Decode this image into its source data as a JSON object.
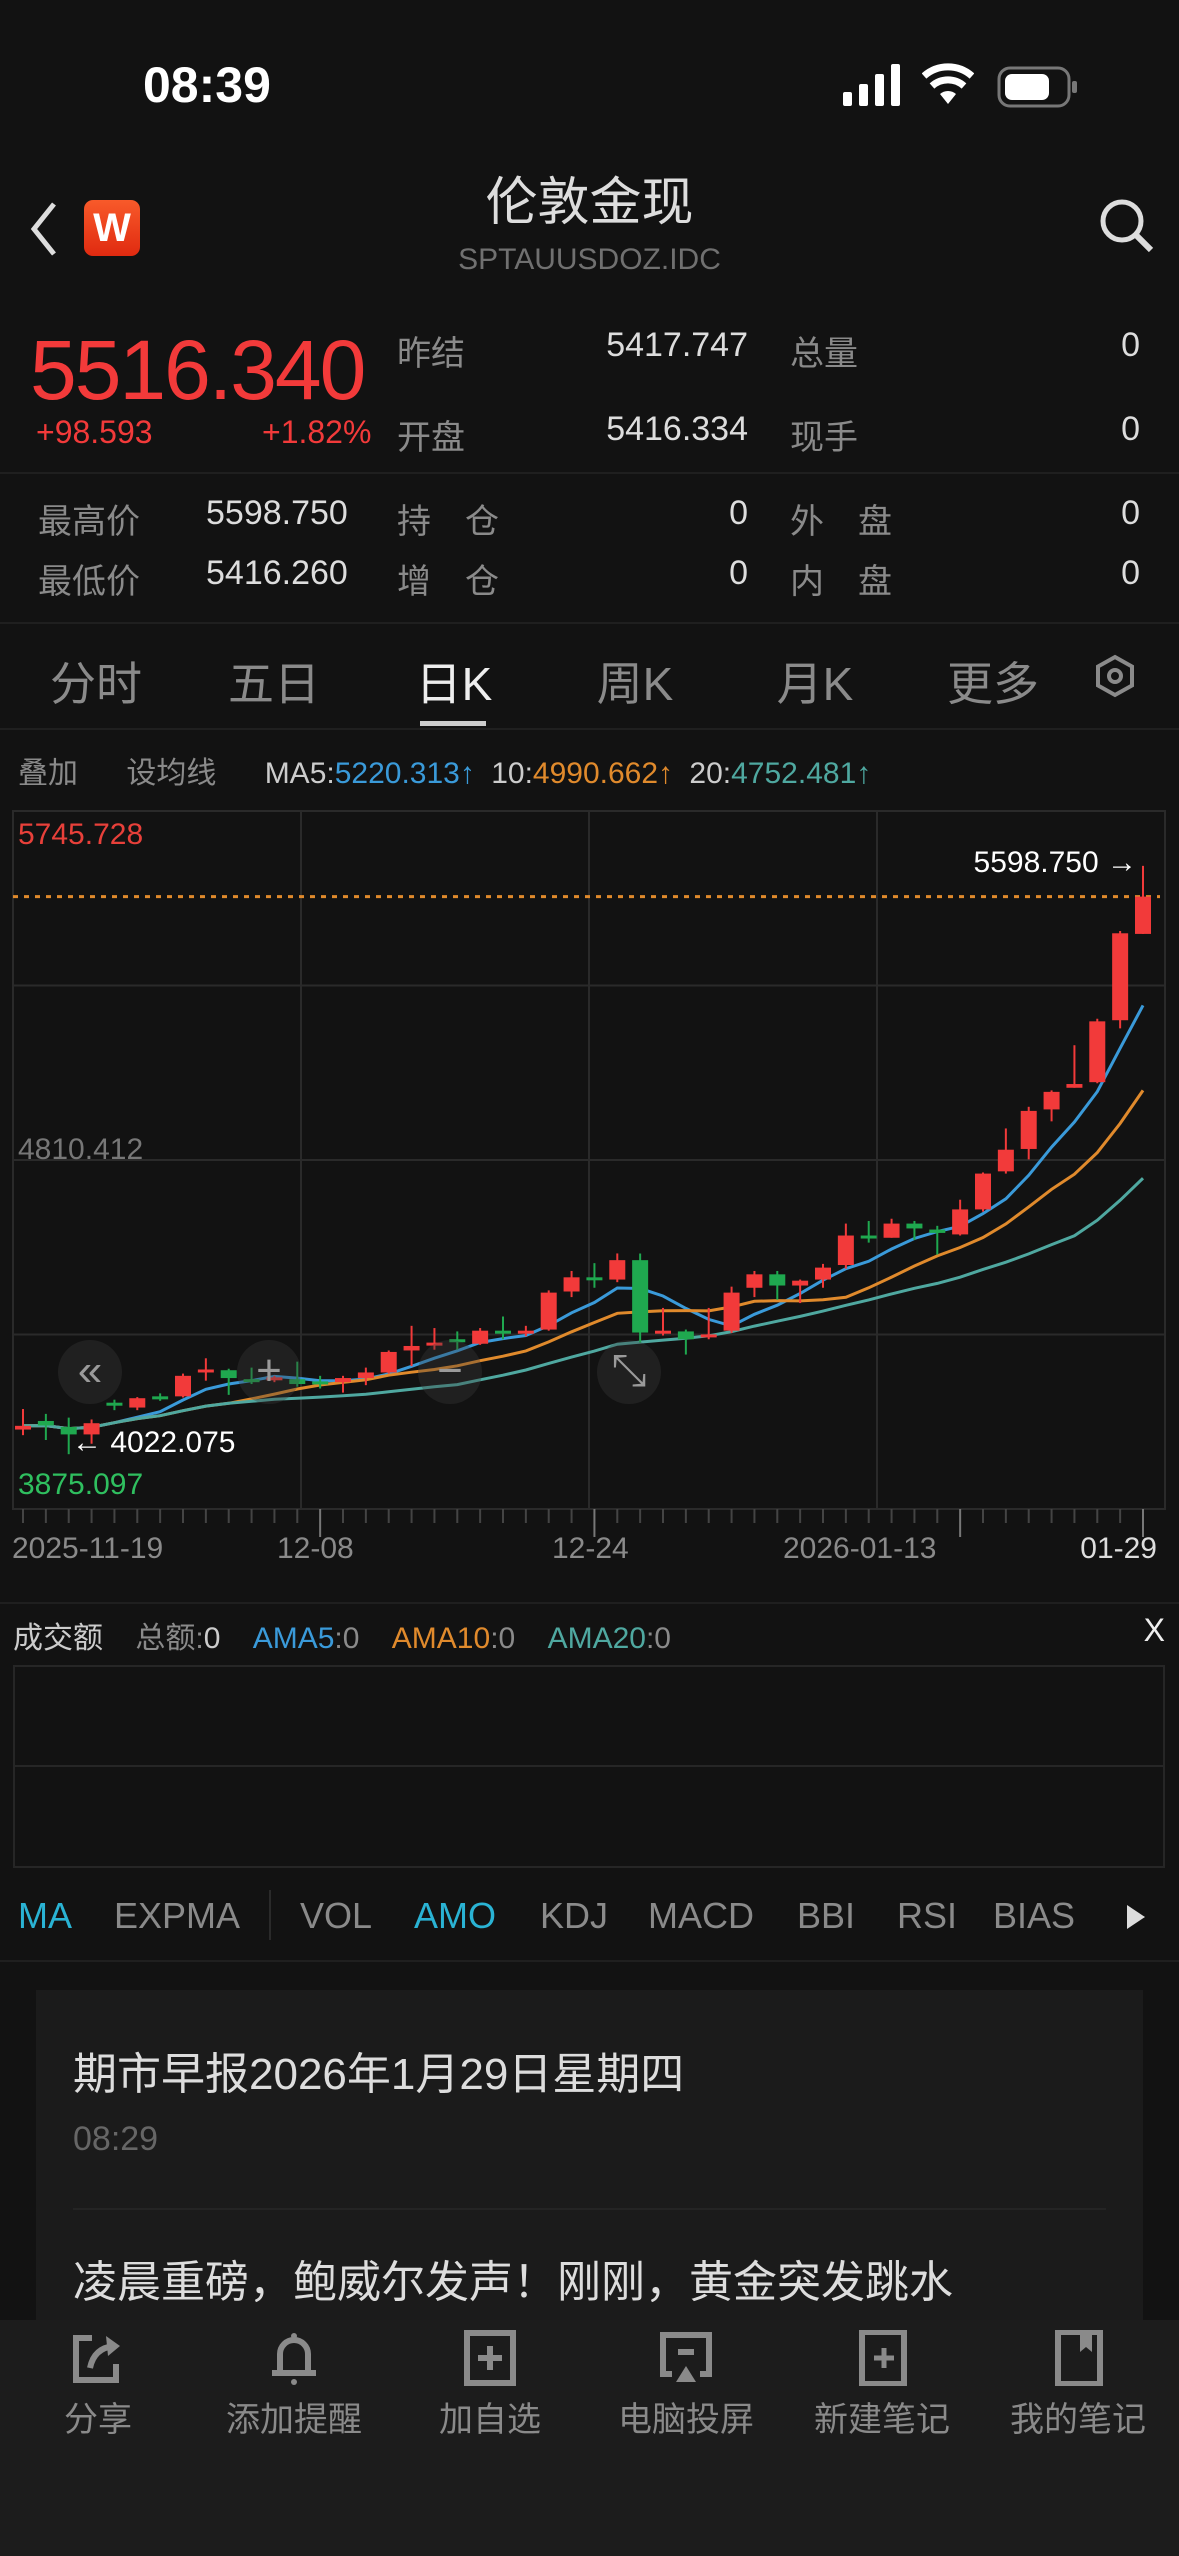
{
  "status_bar": {
    "time": "08:39"
  },
  "header": {
    "title": "伦敦金现",
    "code": "SPTAUUSDOZ.IDC",
    "logo_letter": "W"
  },
  "quote": {
    "price": "5516.340",
    "change": "+98.593",
    "change_pct": "+1.82%",
    "fields": [
      {
        "label": "昨结",
        "value": "5417.747"
      },
      {
        "label": "总量",
        "value": "0"
      },
      {
        "label": "开盘",
        "value": "5416.334"
      },
      {
        "label": "现手",
        "value": "0"
      },
      {
        "label": "最高价",
        "value": "5598.750"
      },
      {
        "label": "持　仓",
        "value": "0"
      },
      {
        "label": "外　盘",
        "value": "0"
      },
      {
        "label": "最低价",
        "value": "5416.260"
      },
      {
        "label": "增　仓",
        "value": "0"
      },
      {
        "label": "内　盘",
        "value": "0"
      }
    ]
  },
  "tabs": [
    "分时",
    "五日",
    "日K",
    "周K",
    "月K",
    "更多"
  ],
  "active_tab": "日K",
  "ma_bar": {
    "overlay": "叠加",
    "set_ma": "设均线",
    "ma5_label": "MA5:",
    "ma5": "5220.313↑",
    "ma10_label": "10:",
    "ma10": "4990.662↑",
    "ma20_label": "20:",
    "ma20": "4752.481↑"
  },
  "colors": {
    "up": "#f23a3a",
    "down": "#1fa84f",
    "ma5": "#3a9ad9",
    "ma10": "#e08a2c",
    "ma20": "#4fa8a0",
    "dash": "#e08a2c"
  },
  "chart_data": {
    "type": "candlestick",
    "y_max_label": "5745.728",
    "y_mid_label": "4810.412",
    "y_min_label": "3875.097",
    "ylim": [
      3875.097,
      5745.728
    ],
    "high_marker": "5598.750 →",
    "low_marker": "← 4022.075",
    "last_price": 5516.34,
    "x_labels": [
      "2025-11-19",
      "12-08",
      "12-24",
      "2026-01-13",
      "01-29"
    ],
    "ohlc": [
      [
        4088,
        4143,
        4073,
        4098
      ],
      [
        4111,
        4130,
        4060,
        4099
      ],
      [
        4095,
        4120,
        4022,
        4075
      ],
      [
        4075,
        4115,
        4050,
        4105
      ],
      [
        4160,
        4168,
        4140,
        4155
      ],
      [
        4147,
        4175,
        4140,
        4172
      ],
      [
        4177,
        4185,
        4165,
        4172
      ],
      [
        4177,
        4238,
        4174,
        4232
      ],
      [
        4243,
        4279,
        4219,
        4249
      ],
      [
        4247,
        4251,
        4181,
        4226
      ],
      [
        4223,
        4254,
        4210,
        4217
      ],
      [
        4223,
        4232,
        4215,
        4228
      ],
      [
        4223,
        4270,
        4203,
        4210
      ],
      [
        4217,
        4232,
        4198,
        4213
      ],
      [
        4215,
        4232,
        4187,
        4226
      ],
      [
        4226,
        4254,
        4207,
        4241
      ],
      [
        4241,
        4300,
        4238,
        4296
      ],
      [
        4300,
        4366,
        4258,
        4312
      ],
      [
        4315,
        4360,
        4302,
        4321
      ],
      [
        4330,
        4351,
        4302,
        4325
      ],
      [
        4318,
        4360,
        4315,
        4353
      ],
      [
        4353,
        4391,
        4330,
        4348
      ],
      [
        4348,
        4366,
        4338,
        4353
      ],
      [
        4356,
        4461,
        4353,
        4455
      ],
      [
        4458,
        4513,
        4443,
        4496
      ],
      [
        4496,
        4534,
        4468,
        4491
      ],
      [
        4490,
        4560,
        4483,
        4542
      ],
      [
        4542,
        4560,
        4321,
        4348
      ],
      [
        4348,
        4414,
        4340,
        4353
      ],
      [
        4351,
        4356,
        4289,
        4330
      ],
      [
        4335,
        4414,
        4330,
        4343
      ],
      [
        4353,
        4471,
        4347,
        4455
      ],
      [
        4468,
        4513,
        4443,
        4504
      ],
      [
        4504,
        4513,
        4436,
        4474
      ],
      [
        4474,
        4490,
        4427,
        4487
      ],
      [
        4490,
        4532,
        4468,
        4522
      ],
      [
        4529,
        4640,
        4519,
        4608
      ],
      [
        4608,
        4647,
        4589,
        4603
      ],
      [
        4602,
        4653,
        4602,
        4640
      ],
      [
        4640,
        4647,
        4596,
        4627
      ],
      [
        4624,
        4634,
        4557,
        4615
      ],
      [
        4611,
        4704,
        4608,
        4678
      ],
      [
        4678,
        4777,
        4672,
        4774
      ],
      [
        4780,
        4895,
        4774,
        4838
      ],
      [
        4840,
        4953,
        4812,
        4942
      ],
      [
        4946,
        4997,
        4914,
        4993
      ],
      [
        5004,
        5118,
        5004,
        5014
      ],
      [
        5019,
        5189,
        5016,
        5182
      ],
      [
        5185,
        5424,
        5163,
        5418
      ],
      [
        5416.334,
        5598.75,
        5416.26,
        5516.34
      ]
    ]
  },
  "chart_controls": {
    "back_icon": "«",
    "zoom_in": "+",
    "zoom_out": "−",
    "fullscreen": "⤡"
  },
  "amount_panel": {
    "title": "成交额",
    "total_label": "总额:",
    "total": "0",
    "ama5_label": "AMA5",
    "ama5": ":0",
    "ama10_label": "AMA10",
    "ama10": ":0",
    "ama20_label": "AMA20",
    "ama20": ":0",
    "close": "X"
  },
  "indicators": [
    "MA",
    "EXPMA",
    "VOL",
    "AMO",
    "KDJ",
    "MACD",
    "BBI",
    "RSI",
    "BIAS"
  ],
  "news": {
    "title": "期市早报2026年1月29日星期四",
    "time": "08:29",
    "headline": "凌晨重磅，鲍威尔发声！刚刚，黄金突发跳水"
  },
  "toolbar": [
    "分享",
    "添加提醒",
    "加自选",
    "电脑投屏",
    "新建笔记",
    "我的笔记"
  ]
}
